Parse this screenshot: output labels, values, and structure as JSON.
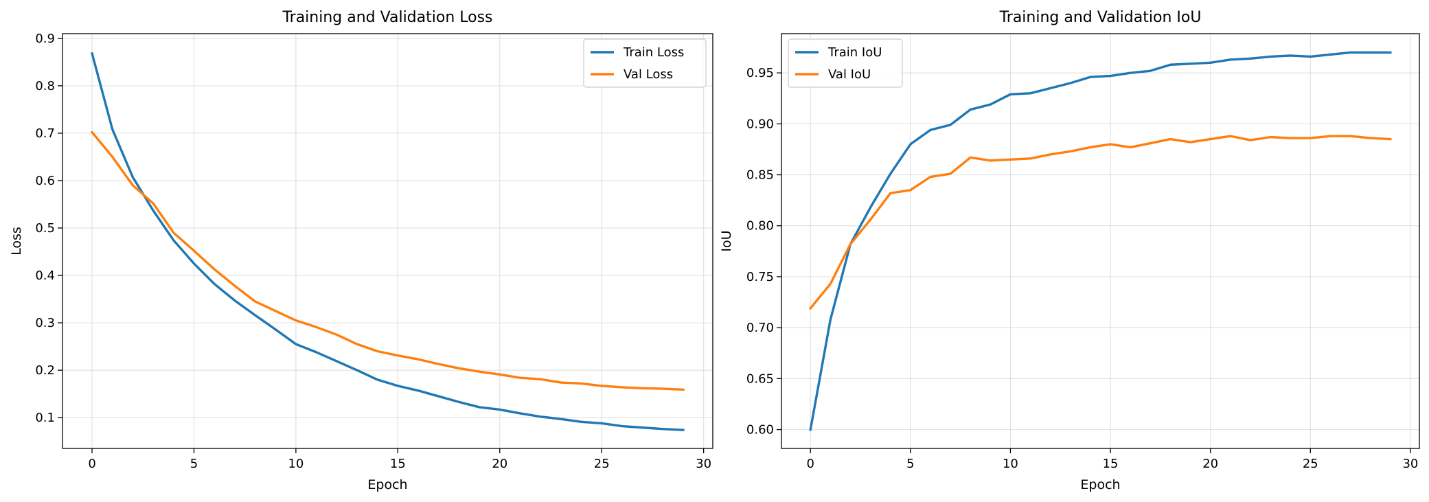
{
  "chart_data": [
    {
      "type": "line",
      "title": "Training and Validation Loss",
      "xlabel": "Epoch",
      "ylabel": "Loss",
      "xlim": [
        -1.45,
        30.45
      ],
      "ylim": [
        0.035,
        0.91
      ],
      "xticks": [
        0,
        5,
        10,
        15,
        20,
        25,
        30
      ],
      "yticks": [
        0.1,
        0.2,
        0.3,
        0.4,
        0.5,
        0.6,
        0.7,
        0.8,
        0.9
      ],
      "ytick_labels": [
        "0.1",
        "0.2",
        "0.3",
        "0.4",
        "0.5",
        "0.6",
        "0.7",
        "0.8",
        "0.9"
      ],
      "grid": true,
      "legend_position": "upper right",
      "x": [
        0,
        1,
        2,
        3,
        4,
        5,
        6,
        7,
        8,
        9,
        10,
        11,
        12,
        13,
        14,
        15,
        16,
        17,
        18,
        19,
        20,
        21,
        22,
        23,
        24,
        25,
        26,
        27,
        28,
        29
      ],
      "series": [
        {
          "name": "Train Loss",
          "color": "#1f77b4",
          "values": [
            0.868,
            0.708,
            0.607,
            0.537,
            0.474,
            0.425,
            0.382,
            0.347,
            0.316,
            0.286,
            0.255,
            0.238,
            0.219,
            0.2,
            0.18,
            0.167,
            0.157,
            0.145,
            0.133,
            0.122,
            0.117,
            0.109,
            0.102,
            0.097,
            0.091,
            0.088,
            0.082,
            0.079,
            0.076,
            0.074
          ]
        },
        {
          "name": "Val Loss",
          "color": "#ff7f0e",
          "values": [
            0.702,
            0.65,
            0.59,
            0.552,
            0.49,
            0.452,
            0.413,
            0.378,
            0.345,
            0.325,
            0.305,
            0.291,
            0.275,
            0.255,
            0.24,
            0.231,
            0.223,
            0.213,
            0.204,
            0.197,
            0.191,
            0.184,
            0.181,
            0.174,
            0.172,
            0.167,
            0.164,
            0.162,
            0.161,
            0.159
          ]
        }
      ]
    },
    {
      "type": "line",
      "title": "Training and Validation IoU",
      "xlabel": "Epoch",
      "ylabel": "IoU",
      "xlim": [
        -1.45,
        30.45
      ],
      "ylim": [
        0.5815,
        0.9885
      ],
      "xticks": [
        0,
        5,
        10,
        15,
        20,
        25,
        30
      ],
      "yticks": [
        0.6,
        0.65,
        0.7,
        0.75,
        0.8,
        0.85,
        0.9,
        0.95
      ],
      "ytick_labels": [
        "0.60",
        "0.65",
        "0.70",
        "0.75",
        "0.80",
        "0.85",
        "0.90",
        "0.95"
      ],
      "grid": true,
      "legend_position": "upper left",
      "x": [
        0,
        1,
        2,
        3,
        4,
        5,
        6,
        7,
        8,
        9,
        10,
        11,
        12,
        13,
        14,
        15,
        16,
        17,
        18,
        19,
        20,
        21,
        22,
        23,
        24,
        25,
        26,
        27,
        28,
        29
      ],
      "series": [
        {
          "name": "Train IoU",
          "color": "#1f77b4",
          "values": [
            0.6,
            0.708,
            0.782,
            0.818,
            0.851,
            0.88,
            0.894,
            0.899,
            0.914,
            0.919,
            0.929,
            0.93,
            0.935,
            0.94,
            0.946,
            0.947,
            0.95,
            0.952,
            0.958,
            0.959,
            0.96,
            0.963,
            0.964,
            0.966,
            0.967,
            0.966,
            0.968,
            0.97,
            0.97,
            0.97
          ]
        },
        {
          "name": "Val IoU",
          "color": "#ff7f0e",
          "values": [
            0.719,
            0.743,
            0.782,
            0.806,
            0.832,
            0.835,
            0.848,
            0.851,
            0.867,
            0.864,
            0.865,
            0.866,
            0.87,
            0.873,
            0.877,
            0.88,
            0.877,
            0.881,
            0.885,
            0.882,
            0.885,
            0.888,
            0.884,
            0.887,
            0.886,
            0.886,
            0.888,
            0.888,
            0.886,
            0.885
          ]
        }
      ]
    }
  ]
}
